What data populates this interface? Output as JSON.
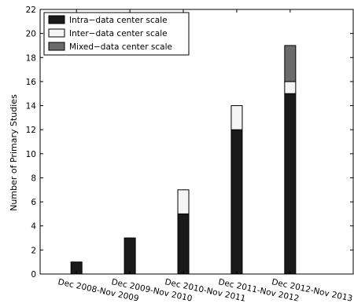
{
  "chart_data": {
    "type": "bar",
    "stacked": true,
    "categories": [
      "Dec 2008-Nov 2009",
      "Dec 2009-Nov 2010",
      "Dec 2010-Nov 2011",
      "Dec 2011-Nov 2012",
      "Dec 2012-Nov 2013"
    ],
    "series": [
      {
        "name": "Intra−data center scale",
        "values": [
          1,
          3,
          5,
          12,
          15
        ],
        "color": "#1a1a1a"
      },
      {
        "name": "Inter−data center scale",
        "values": [
          0,
          0,
          2,
          2,
          1
        ],
        "color": "#f5f5f5"
      },
      {
        "name": "Mixed−data center scale",
        "values": [
          0,
          0,
          0,
          0,
          3
        ],
        "color": "#6b6b6b"
      }
    ],
    "title": "",
    "xlabel": "",
    "ylabel": "Number of Primary Studies",
    "ylim": [
      0,
      22
    ],
    "yticks": [
      0,
      2,
      4,
      6,
      8,
      10,
      12,
      14,
      16,
      18,
      20,
      22
    ],
    "grid": false,
    "legend": "top-left"
  }
}
